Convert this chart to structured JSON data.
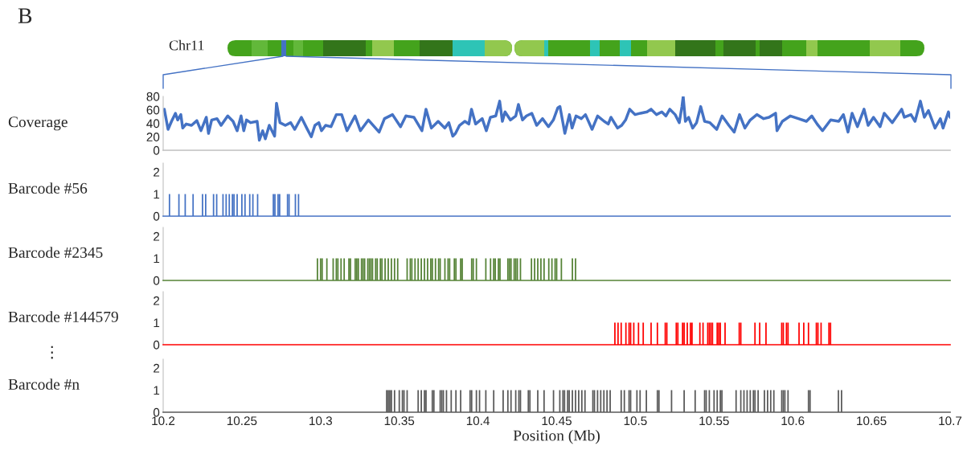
{
  "chart_data": [
    {
      "type": "line",
      "ylabel": "Coverage",
      "annotations": [
        "B",
        "Chr11"
      ],
      "color": "#4472c4",
      "xlim": [
        10.2,
        10.7
      ],
      "ylim": [
        0,
        80
      ],
      "yticks": [
        0,
        20,
        40,
        60,
        80
      ],
      "tick_labels": "y",
      "x": [
        10.2007,
        10.2031,
        10.2053,
        10.2078,
        10.2092,
        10.2112,
        10.2124,
        10.2146,
        10.218,
        10.2214,
        10.224,
        10.2274,
        10.2288,
        10.2308,
        10.2342,
        10.2368,
        10.241,
        10.2444,
        10.247,
        10.2495,
        10.2512,
        10.2529,
        10.2555,
        10.2597,
        10.2611,
        10.2632,
        10.2649,
        10.2674,
        10.2708,
        10.272,
        10.2742,
        10.2776,
        10.281,
        10.2836,
        10.2878,
        10.2912,
        10.2941,
        10.2964,
        10.2989,
        10.3006,
        10.3032,
        10.3066,
        10.31,
        10.3134,
        10.3168,
        10.3219,
        10.3253,
        10.3304,
        10.3372,
        10.3406,
        10.3457,
        10.3508,
        10.3542,
        10.3593,
        10.3644,
        10.367,
        10.3704,
        10.3747,
        10.3789,
        10.3815,
        10.384,
        10.3857,
        10.3883,
        10.3917,
        10.3942,
        10.3959,
        10.3985,
        10.4027,
        10.4053,
        10.4079,
        10.4113,
        10.4138,
        10.4155,
        10.4172,
        10.4206,
        10.424,
        10.4257,
        10.4283,
        10.4308,
        10.4342,
        10.4373,
        10.441,
        10.4448,
        10.4479,
        10.4507,
        10.4521,
        10.4552,
        10.4581,
        10.4598,
        10.4623,
        10.4657,
        10.4683,
        10.4725,
        10.476,
        10.4802,
        10.4828,
        10.4845,
        10.4887,
        10.4913,
        10.4938,
        10.4964,
        10.4998,
        10.5032,
        10.5074,
        10.51,
        10.5134,
        10.5168,
        10.5194,
        10.5219,
        10.5253,
        10.5279,
        10.5296,
        10.5304,
        10.5318,
        10.5338,
        10.5364,
        10.5389,
        10.5415,
        10.544,
        10.5474,
        10.5517,
        10.5551,
        10.5594,
        10.5628,
        10.5662,
        10.5696,
        10.573,
        10.5772,
        10.5815,
        10.5849,
        10.5891,
        10.59,
        10.5934,
        10.5985,
        10.6036,
        10.6087,
        10.6121,
        10.6155,
        10.6189,
        10.6241,
        10.6292,
        10.6322,
        10.6351,
        10.6377,
        10.6411,
        10.6453,
        10.6479,
        10.6513,
        10.6555,
        10.6581,
        10.6632,
        10.6692,
        10.6709,
        10.6751,
        10.6777,
        10.6811,
        10.6836,
        10.6862,
        10.6904,
        10.6938,
        10.6955,
        10.6989,
        10.7
      ],
      "values": [
        61,
        31,
        43,
        55,
        45,
        53,
        33,
        39,
        37,
        44,
        29,
        49,
        25,
        45,
        47,
        37,
        51,
        43,
        29,
        51,
        29,
        45,
        41,
        43,
        15,
        29,
        17,
        37,
        21,
        70,
        41,
        37,
        41,
        31,
        49,
        33,
        20,
        37,
        41,
        29,
        37,
        35,
        53,
        53,
        29,
        51,
        29,
        45,
        27,
        47,
        53,
        35,
        51,
        49,
        29,
        61,
        33,
        43,
        33,
        41,
        21,
        25,
        37,
        43,
        39,
        61,
        39,
        47,
        29,
        49,
        51,
        73,
        43,
        57,
        45,
        51,
        68,
        45,
        51,
        55,
        37,
        47,
        35,
        45,
        63,
        65,
        25,
        53,
        33,
        51,
        47,
        53,
        31,
        51,
        43,
        39,
        49,
        33,
        37,
        45,
        61,
        53,
        55,
        57,
        61,
        53,
        57,
        51,
        61,
        53,
        41,
        65,
        80,
        43,
        49,
        33,
        41,
        65,
        43,
        41,
        31,
        51,
        37,
        27,
        53,
        33,
        45,
        53,
        47,
        49,
        55,
        29,
        43,
        51,
        47,
        43,
        51,
        39,
        29,
        45,
        43,
        53,
        27,
        55,
        35,
        61,
        37,
        49,
        35,
        55,
        41,
        61,
        49,
        53,
        43,
        73,
        49,
        59,
        33,
        47,
        33,
        57,
        49
      ]
    },
    {
      "type": "bar",
      "ylabel": "Barcode #56",
      "color": "#4472c4",
      "xlim": [
        10.2,
        10.7
      ],
      "ylim": [
        0,
        2.4
      ],
      "yticks": [
        0,
        1,
        2
      ],
      "tick_labels": "y",
      "x": [
        10.204,
        10.21,
        10.214,
        10.219,
        10.225,
        10.227,
        10.232,
        10.234,
        10.238,
        10.24,
        10.242,
        10.244,
        10.245,
        10.247,
        10.25,
        10.252,
        10.255,
        10.257,
        10.26,
        10.27,
        10.271,
        10.273,
        10.274,
        10.279,
        10.28,
        10.284,
        10.286
      ],
      "values": [
        1,
        1,
        1,
        1,
        1,
        1,
        1,
        1,
        1,
        1,
        1,
        1,
        1,
        1,
        1,
        1,
        1,
        1,
        1,
        1,
        1,
        1,
        1,
        1,
        1,
        1,
        1
      ]
    },
    {
      "type": "bar",
      "ylabel": "Barcode #2345",
      "color": "#548235",
      "xlim": [
        10.2,
        10.7
      ],
      "ylim": [
        0,
        2.4
      ],
      "yticks": [
        0,
        1,
        2
      ],
      "tick_labels": "y",
      "x": [
        10.298,
        10.3,
        10.301,
        10.304,
        10.308,
        10.31,
        10.311,
        10.313,
        10.315,
        10.318,
        10.319,
        10.322,
        10.323,
        10.324,
        10.326,
        10.327,
        10.328,
        10.33,
        10.331,
        10.332,
        10.333,
        10.335,
        10.336,
        10.338,
        10.339,
        10.341,
        10.343,
        10.345,
        10.347,
        10.349,
        10.355,
        10.357,
        10.358,
        10.36,
        10.362,
        10.364,
        10.366,
        10.368,
        10.37,
        10.371,
        10.373,
        10.375,
        10.376,
        10.379,
        10.381,
        10.382,
        10.385,
        10.386,
        10.389,
        10.39,
        10.396,
        10.397,
        10.399,
        10.405,
        10.408,
        10.41,
        10.411,
        10.413,
        10.414,
        10.419,
        10.42,
        10.421,
        10.423,
        10.424,
        10.425,
        10.427,
        10.434,
        10.436,
        10.438,
        10.44,
        10.442,
        10.445,
        10.447,
        10.449,
        10.45,
        10.453,
        10.46,
        10.462
      ],
      "values": [
        1,
        1,
        1,
        1,
        1,
        1,
        1,
        1,
        1,
        1,
        1,
        1,
        1,
        1,
        1,
        1,
        1,
        1,
        1,
        1,
        1,
        1,
        1,
        1,
        1,
        1,
        1,
        1,
        1,
        1,
        1,
        1,
        1,
        1,
        1,
        1,
        1,
        1,
        1,
        1,
        1,
        1,
        1,
        1,
        1,
        1,
        1,
        1,
        1,
        1,
        1,
        1,
        1,
        1,
        1,
        1,
        1,
        1,
        1,
        1,
        1,
        1,
        1,
        1,
        1,
        1,
        1,
        1,
        1,
        1,
        1,
        1,
        1,
        1,
        1,
        1,
        1,
        1
      ]
    },
    {
      "type": "bar",
      "ylabel": "Barcode #144579",
      "annotations": [
        "⋮"
      ],
      "color": "#ff0000",
      "xlim": [
        10.2,
        10.7
      ],
      "ylim": [
        0,
        2.4
      ],
      "yticks": [
        0,
        1,
        2
      ],
      "tick_labels": "y",
      "x": [
        10.487,
        10.489,
        10.491,
        10.494,
        10.496,
        10.497,
        10.499,
        10.502,
        10.505,
        10.51,
        10.514,
        10.519,
        10.52,
        10.526,
        10.527,
        10.53,
        10.531,
        10.533,
        10.535,
        10.536,
        10.541,
        10.543,
        10.546,
        10.547,
        10.548,
        10.549,
        10.552,
        10.553,
        10.554,
        10.557,
        10.566,
        10.567,
        10.576,
        10.579,
        10.583,
        10.593,
        10.594,
        10.596,
        10.597,
        10.604,
        10.607,
        10.61,
        10.615,
        10.616,
        10.618,
        10.623,
        10.624
      ],
      "values": [
        1,
        1,
        1,
        1,
        1,
        1,
        1,
        1,
        1,
        1,
        1,
        1,
        1,
        1,
        1,
        1,
        1,
        1,
        1,
        1,
        1,
        1,
        1,
        1,
        1,
        1,
        1,
        1,
        1,
        1,
        1,
        1,
        1,
        1,
        1,
        1,
        1,
        1,
        1,
        1,
        1,
        1,
        1,
        1,
        1,
        1,
        1
      ]
    },
    {
      "type": "bar",
      "ylabel": "Barcode #n",
      "xlabel": "Position (Mb)",
      "color": "#595959",
      "xlim": [
        10.2,
        10.7
      ],
      "ylim": [
        0,
        2.4
      ],
      "yticks": [
        0,
        1,
        2
      ],
      "xticks": [
        10.2,
        10.25,
        10.3,
        10.35,
        10.4,
        10.45,
        10.5,
        10.55,
        10.6,
        10.65,
        10.7
      ],
      "x": [
        10.342,
        10.343,
        10.344,
        10.345,
        10.347,
        10.35,
        10.352,
        10.353,
        10.355,
        10.362,
        10.364,
        10.366,
        10.367,
        10.371,
        10.372,
        10.376,
        10.377,
        10.378,
        10.38,
        10.383,
        10.386,
        10.389,
        10.395,
        10.396,
        10.399,
        10.401,
        10.405,
        10.41,
        10.416,
        10.419,
        10.421,
        10.424,
        10.426,
        10.427,
        10.432,
        10.433,
        10.438,
        10.442,
        10.448,
        10.452,
        10.454,
        10.455,
        10.457,
        10.458,
        10.46,
        10.462,
        10.464,
        10.466,
        10.468,
        10.473,
        10.474,
        10.476,
        10.478,
        10.48,
        10.482,
        10.484,
        10.491,
        10.493,
        10.496,
        10.497,
        10.501,
        10.503,
        10.507,
        10.514,
        10.515,
        10.523,
        10.531,
        10.538,
        10.544,
        10.545,
        10.547,
        10.55,
        10.552,
        10.554,
        10.555,
        10.564,
        10.567,
        10.569,
        10.571,
        10.573,
        10.575,
        10.576,
        10.578,
        10.582,
        10.584,
        10.586,
        10.588,
        10.593,
        10.594,
        10.595,
        10.597,
        10.61,
        10.611,
        10.629,
        10.631
      ],
      "values": [
        1,
        1,
        1,
        1,
        1,
        1,
        1,
        1,
        1,
        1,
        1,
        1,
        1,
        1,
        1,
        1,
        1,
        1,
        1,
        1,
        1,
        1,
        1,
        1,
        1,
        1,
        1,
        1,
        1,
        1,
        1,
        1,
        1,
        1,
        1,
        1,
        1,
        1,
        1,
        1,
        1,
        1,
        1,
        1,
        1,
        1,
        1,
        1,
        1,
        1,
        1,
        1,
        1,
        1,
        1,
        1,
        1,
        1,
        1,
        1,
        1,
        1,
        1,
        1,
        1,
        1,
        1,
        1,
        1,
        1,
        1,
        1,
        1,
        1,
        1,
        1,
        1,
        1,
        1,
        1,
        1,
        1,
        1,
        1,
        1,
        1,
        1,
        1,
        1,
        1,
        1,
        1,
        1,
        1,
        1
      ]
    }
  ]
}
